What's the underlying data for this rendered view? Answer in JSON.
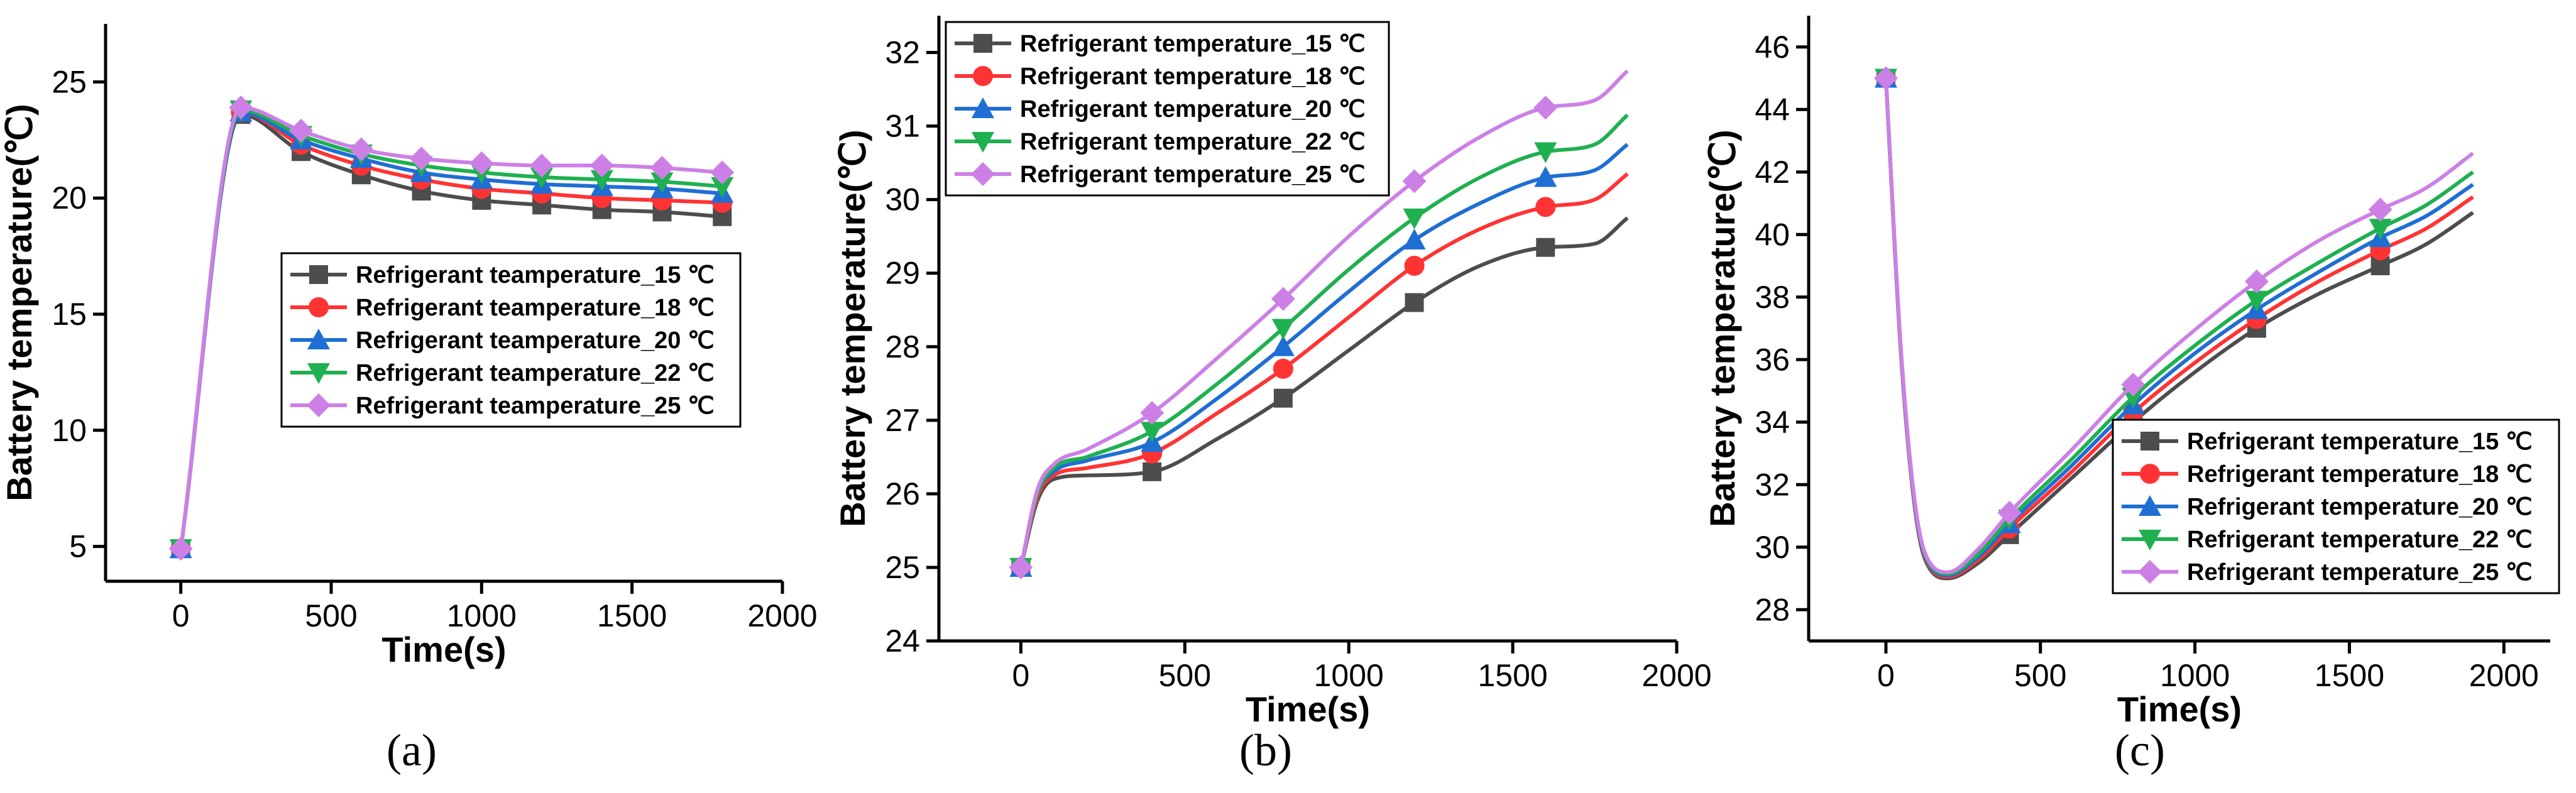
{
  "chart_data": [
    {
      "id": "a",
      "type": "line",
      "caption": "(a)",
      "xlabel": "Time(s)",
      "ylabel": "Battery temperature(℃)",
      "xlim": [
        -250,
        2000
      ],
      "ylim": [
        3.5,
        27.5
      ],
      "xticks": [
        0,
        500,
        1000,
        1500,
        2000
      ],
      "yticks": [
        5,
        10,
        15,
        20,
        25
      ],
      "x": [
        0,
        200,
        400,
        600,
        800,
        1000,
        1200,
        1400,
        1600,
        1800
      ],
      "legend_position": "center-right",
      "series": [
        {
          "name": "Refrigerant teamperature_15 ℃",
          "color": "#4d4d4d",
          "marker": "square",
          "values": [
            4.9,
            23.6,
            22.0,
            21.0,
            20.3,
            19.9,
            19.7,
            19.5,
            19.4,
            19.2
          ]
        },
        {
          "name": "Refrigerant teamperature_18 ℃",
          "color": "#ff3333",
          "marker": "circle",
          "values": [
            4.9,
            23.7,
            22.3,
            21.4,
            20.8,
            20.4,
            20.2,
            20.0,
            19.9,
            19.8
          ]
        },
        {
          "name": "Refrigerant teamperature_20 ℃",
          "color": "#1f6ed4",
          "marker": "triangle-up",
          "values": [
            4.9,
            23.7,
            22.5,
            21.7,
            21.1,
            20.8,
            20.6,
            20.5,
            20.4,
            20.2
          ]
        },
        {
          "name": "Refrigerant teamperature_22 ℃",
          "color": "#1fb050",
          "marker": "triangle-down",
          "values": [
            4.9,
            23.8,
            22.7,
            21.9,
            21.4,
            21.1,
            20.9,
            20.8,
            20.7,
            20.5
          ]
        },
        {
          "name": "Refrigerant teamperature_25 ℃",
          "color": "#cc80e6",
          "marker": "diamond",
          "values": [
            4.9,
            23.9,
            22.9,
            22.1,
            21.7,
            21.5,
            21.4,
            21.4,
            21.3,
            21.1
          ]
        }
      ]
    },
    {
      "id": "b",
      "type": "line",
      "caption": "(b)",
      "xlabel": "Time(s)",
      "ylabel": "Battery temperature(℃)",
      "xlim": [
        -250,
        2000
      ],
      "ylim": [
        24,
        32.5
      ],
      "xticks": [
        0,
        500,
        1000,
        1500,
        2000
      ],
      "yticks": [
        24,
        25,
        26,
        27,
        28,
        29,
        30,
        31,
        32
      ],
      "x": [
        0,
        50,
        100,
        200,
        400,
        600,
        800,
        1000,
        1200,
        1400,
        1600,
        1750,
        1850
      ],
      "legend_position": "top-left",
      "series": [
        {
          "name": "Refrigerant temperature_15 ℃",
          "color": "#4d4d4d",
          "marker": "square",
          "marker_x": [
            0,
            400,
            800,
            1200,
            1600
          ],
          "values": [
            25.0,
            25.9,
            26.2,
            26.25,
            26.3,
            26.75,
            27.3,
            27.95,
            28.6,
            29.1,
            29.35,
            29.4,
            29.75
          ]
        },
        {
          "name": "Refrigerant temperature_18 ℃",
          "color": "#ff3333",
          "marker": "circle",
          "marker_x": [
            0,
            400,
            800,
            1200,
            1600
          ],
          "values": [
            25.0,
            25.95,
            26.25,
            26.35,
            26.55,
            27.1,
            27.7,
            28.4,
            29.1,
            29.6,
            29.9,
            30.0,
            30.35
          ]
        },
        {
          "name": "Refrigerant temperature_20 ℃",
          "color": "#1f6ed4",
          "marker": "triangle-up",
          "marker_x": [
            0,
            400,
            800,
            1200,
            1600
          ],
          "values": [
            25.0,
            26.0,
            26.3,
            26.45,
            26.7,
            27.3,
            28.0,
            28.75,
            29.45,
            29.95,
            30.3,
            30.4,
            30.75
          ]
        },
        {
          "name": "Refrigerant temperature_22 ℃",
          "color": "#1fb050",
          "marker": "triangle-down",
          "marker_x": [
            0,
            400,
            800,
            1200,
            1600
          ],
          "values": [
            25.0,
            26.0,
            26.35,
            26.5,
            26.85,
            27.5,
            28.25,
            29.05,
            29.75,
            30.3,
            30.65,
            30.75,
            31.15
          ]
        },
        {
          "name": "Refrigerant temperature_25 ℃",
          "color": "#cc80e6",
          "marker": "diamond",
          "marker_x": [
            0,
            400,
            800,
            1200,
            1600
          ],
          "values": [
            25.0,
            26.05,
            26.4,
            26.6,
            27.1,
            27.85,
            28.65,
            29.5,
            30.25,
            30.85,
            31.25,
            31.35,
            31.75
          ]
        }
      ]
    },
    {
      "id": "c",
      "type": "line",
      "caption": "(c)",
      "xlabel": "Time(s)",
      "ylabel": "Battery temperature(℃)",
      "xlim": [
        -250,
        2150
      ],
      "ylim": [
        27,
        47
      ],
      "xticks": [
        0,
        500,
        1000,
        1500,
        2000
      ],
      "yticks": [
        28,
        30,
        32,
        34,
        36,
        38,
        40,
        42,
        44,
        46
      ],
      "x": [
        0,
        50,
        100,
        150,
        200,
        300,
        400,
        600,
        800,
        1000,
        1200,
        1400,
        1600,
        1750,
        1900
      ],
      "legend_position": "bottom-right",
      "series": [
        {
          "name": "Refrigerant temperature_15 ℃",
          "color": "#4d4d4d",
          "marker": "square",
          "marker_x": [
            0,
            400,
            800,
            1200,
            1600
          ],
          "values": [
            45.0,
            36.0,
            30.8,
            29.2,
            29.0,
            29.5,
            30.4,
            32.2,
            34.0,
            35.6,
            37.0,
            38.1,
            39.0,
            39.7,
            40.7
          ]
        },
        {
          "name": "Refrigerant temperature_18 ℃",
          "color": "#ff3333",
          "marker": "circle",
          "marker_x": [
            0,
            400,
            800,
            1200,
            1600
          ],
          "values": [
            45.0,
            36.0,
            30.85,
            29.25,
            29.05,
            29.6,
            30.6,
            32.4,
            34.3,
            35.9,
            37.3,
            38.5,
            39.5,
            40.2,
            41.2
          ]
        },
        {
          "name": "Refrigerant temperature_20 ℃",
          "color": "#1f6ed4",
          "marker": "triangle-up",
          "marker_x": [
            0,
            400,
            800,
            1200,
            1600
          ],
          "values": [
            45.0,
            36.05,
            30.9,
            29.3,
            29.1,
            29.7,
            30.75,
            32.6,
            34.55,
            36.2,
            37.6,
            38.8,
            39.9,
            40.6,
            41.6
          ]
        },
        {
          "name": "Refrigerant temperature_22 ℃",
          "color": "#1fb050",
          "marker": "triangle-down",
          "marker_x": [
            0,
            400,
            800,
            1200,
            1600
          ],
          "values": [
            45.0,
            36.1,
            30.95,
            29.35,
            29.15,
            29.8,
            30.9,
            32.8,
            34.8,
            36.45,
            37.9,
            39.1,
            40.2,
            40.95,
            42.0
          ]
        },
        {
          "name": "Refrigerant temperature_25 ℃",
          "color": "#cc80e6",
          "marker": "diamond",
          "marker_x": [
            0,
            400,
            800,
            1200,
            1600
          ],
          "values": [
            45.0,
            36.15,
            31.0,
            29.4,
            29.2,
            29.95,
            31.1,
            33.1,
            35.2,
            36.95,
            38.5,
            39.8,
            40.8,
            41.5,
            42.6
          ]
        }
      ]
    }
  ]
}
